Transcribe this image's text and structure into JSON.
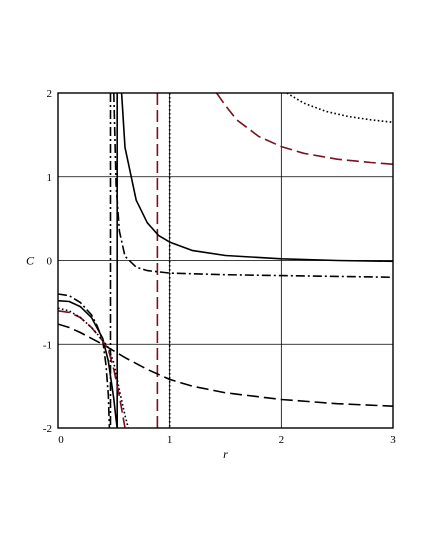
{
  "chart_data": {
    "type": "line",
    "xlabel": "r",
    "ylabel": "C",
    "xlim": [
      0,
      3
    ],
    "ylim": [
      -2,
      2
    ],
    "xticks": [
      0,
      1,
      2,
      3
    ],
    "yticks": [
      -2,
      -1,
      0,
      1,
      2
    ],
    "grid": true,
    "legend": "none",
    "vertical_asymptotes": [
      {
        "x": 0.47,
        "color": "#000000",
        "style": "dashdot"
      },
      {
        "x": 0.53,
        "color": "#000000",
        "style": "solid"
      },
      {
        "x": 0.89,
        "color": "#7a1020",
        "style": "longdash"
      },
      {
        "x": 1.0,
        "color": "#000000",
        "style": "dotted"
      }
    ],
    "series": [
      {
        "color": "#000000",
        "style": "solid",
        "segments": [
          {
            "x": [
              0,
              0.1,
              0.2,
              0.3,
              0.4,
              0.45,
              0.5,
              0.52,
              0.53
            ],
            "y": [
              -0.48,
              -0.49,
              -0.55,
              -0.68,
              -0.93,
              -1.2,
              -1.65,
              -1.9,
              -2.0
            ]
          },
          {
            "x": [
              0.57,
              0.6,
              0.7,
              0.8,
              0.9,
              1.0,
              1.2,
              1.5,
              2.0,
              2.5,
              3.0
            ],
            "y": [
              2.0,
              1.35,
              0.72,
              0.45,
              0.3,
              0.22,
              0.12,
              0.06,
              0.02,
              0.0,
              -0.01
            ]
          }
        ]
      },
      {
        "color": "#000000",
        "style": "dashdot",
        "segments": [
          {
            "x": [
              0,
              0.1,
              0.2,
              0.3,
              0.35,
              0.4,
              0.43,
              0.45,
              0.46
            ],
            "y": [
              -0.4,
              -0.42,
              -0.5,
              -0.65,
              -0.78,
              -0.95,
              -1.25,
              -1.6,
              -2.0
            ]
          },
          {
            "x": [
              0.5,
              0.52,
              0.55,
              0.6,
              0.7,
              0.8,
              1.0,
              1.5,
              2.0,
              2.5,
              3.0
            ],
            "y": [
              2.0,
              0.9,
              0.35,
              0.05,
              -0.08,
              -0.12,
              -0.15,
              -0.17,
              -0.18,
              -0.19,
              -0.2
            ]
          }
        ]
      },
      {
        "color": "#000000",
        "style": "longdash",
        "segments": [
          {
            "x": [
              0,
              0.1,
              0.2,
              0.3,
              0.4,
              0.5,
              0.6,
              0.8,
              1.0,
              1.2,
              1.5,
              2.0,
              2.5,
              3.0
            ],
            "y": [
              -0.76,
              -0.8,
              -0.86,
              -0.93,
              -1.0,
              -1.08,
              -1.16,
              -1.3,
              -1.42,
              -1.5,
              -1.58,
              -1.66,
              -1.71,
              -1.74
            ]
          }
        ]
      },
      {
        "color": "#7a1020",
        "style": "longdash",
        "segments": [
          {
            "x": [
              0,
              0.1,
              0.2,
              0.3,
              0.4,
              0.45,
              0.5,
              0.55,
              0.6
            ],
            "y": [
              -0.6,
              -0.62,
              -0.68,
              -0.8,
              -0.96,
              -1.06,
              -1.3,
              -1.62,
              -2.0
            ]
          },
          {
            "x": [
              1.42,
              1.5,
              1.6,
              1.8,
              2.0,
              2.2,
              2.5,
              2.8,
              3.0
            ],
            "y": [
              2.0,
              1.85,
              1.68,
              1.48,
              1.36,
              1.28,
              1.21,
              1.17,
              1.15
            ]
          }
        ]
      },
      {
        "color": "#000000",
        "style": "dotted",
        "segments": [
          {
            "x": [
              0,
              0.1,
              0.2,
              0.3,
              0.4,
              0.45,
              0.5,
              0.55,
              0.6,
              0.63
            ],
            "y": [
              -0.57,
              -0.6,
              -0.68,
              -0.8,
              -0.95,
              -1.04,
              -1.22,
              -1.55,
              -1.85,
              -2.0
            ]
          },
          {
            "x": [
              2.05,
              2.2,
              2.4,
              2.6,
              2.8,
              3.0
            ],
            "y": [
              2.0,
              1.88,
              1.78,
              1.72,
              1.68,
              1.65
            ]
          }
        ]
      }
    ]
  }
}
